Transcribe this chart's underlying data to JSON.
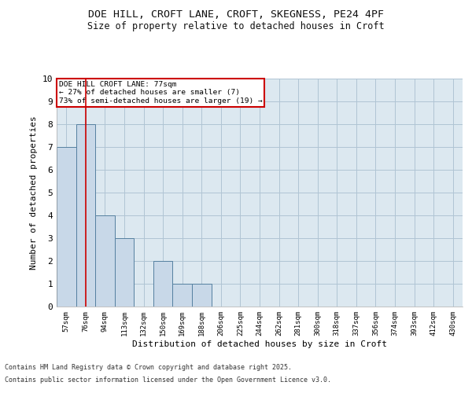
{
  "title_line1": "DOE HILL, CROFT LANE, CROFT, SKEGNESS, PE24 4PF",
  "title_line2": "Size of property relative to detached houses in Croft",
  "xlabel": "Distribution of detached houses by size in Croft",
  "ylabel": "Number of detached properties",
  "categories": [
    "57sqm",
    "76sqm",
    "94sqm",
    "113sqm",
    "132sqm",
    "150sqm",
    "169sqm",
    "188sqm",
    "206sqm",
    "225sqm",
    "244sqm",
    "262sqm",
    "281sqm",
    "300sqm",
    "318sqm",
    "337sqm",
    "356sqm",
    "374sqm",
    "393sqm",
    "412sqm",
    "430sqm"
  ],
  "values": [
    7,
    8,
    4,
    3,
    0,
    2,
    1,
    1,
    0,
    0,
    0,
    0,
    0,
    0,
    0,
    0,
    0,
    0,
    0,
    0,
    0
  ],
  "bar_color": "#c8d8e8",
  "bar_edge_color": "#5580a0",
  "highlight_line_color": "#cc0000",
  "highlight_bar_index": 1,
  "annotation_title": "DOE HILL CROFT LANE: 77sqm",
  "annotation_line2": "← 27% of detached houses are smaller (7)",
  "annotation_line3": "73% of semi-detached houses are larger (19) →",
  "annotation_box_color": "#ffffff",
  "annotation_box_edge": "#cc0000",
  "ylim": [
    0,
    10
  ],
  "yticks": [
    0,
    1,
    2,
    3,
    4,
    5,
    6,
    7,
    8,
    9,
    10
  ],
  "grid_color": "#b0c4d4",
  "background_color": "#dce8f0",
  "fig_background_color": "#ffffff",
  "footer_line1": "Contains HM Land Registry data © Crown copyright and database right 2025.",
  "footer_line2": "Contains public sector information licensed under the Open Government Licence v3.0."
}
